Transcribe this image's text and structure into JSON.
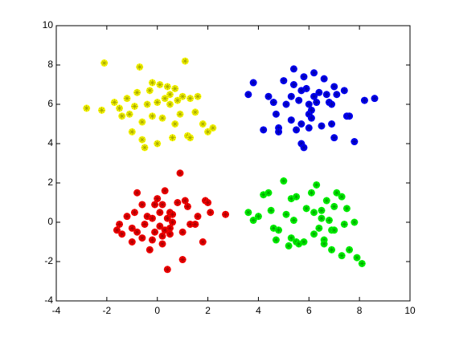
{
  "chart_data": {
    "type": "scatter",
    "xlim": [
      -4,
      10
    ],
    "ylim": [
      -4,
      10
    ],
    "xticks": [
      -4,
      -2,
      0,
      2,
      4,
      6,
      8,
      10
    ],
    "yticks": [
      -4,
      -2,
      0,
      2,
      4,
      6,
      8,
      10
    ],
    "grid": false,
    "series": [
      {
        "color": "#ffff00",
        "x": [
          -2.8,
          -2.2,
          -2.1,
          -1.7,
          -1.5,
          -1.4,
          -1.2,
          -1.1,
          -1.0,
          -0.9,
          -0.8,
          -0.7,
          -0.6,
          -0.6,
          -0.5,
          -0.4,
          -0.3,
          -0.2,
          0,
          0,
          0.1,
          0.2,
          0.3,
          0.4,
          0.5,
          0.5,
          0.6,
          0.7,
          0.7,
          0.8,
          0.9,
          1.0,
          1.1,
          1.2,
          1.3,
          1.5,
          1.6,
          1.8,
          2.0,
          2.2,
          -0.2,
          1.3
        ],
        "values": [
          5.8,
          5.7,
          8.1,
          6.1,
          5.8,
          5.4,
          6.3,
          5.5,
          4.6,
          5.9,
          6.6,
          7.9,
          5.1,
          4.2,
          3.8,
          6.0,
          6.7,
          5.4,
          6.1,
          4.0,
          7.0,
          5.3,
          6.3,
          6.9,
          6.5,
          6.0,
          4.3,
          5.0,
          6.8,
          6.2,
          5.5,
          6.4,
          8.2,
          4.4,
          4.3,
          5.6,
          6.4,
          5.0,
          4.6,
          4.8,
          7.1,
          6.3
        ]
      },
      {
        "color": "#0000ff",
        "x": [
          3.6,
          3.8,
          4.2,
          4.4,
          4.6,
          4.7,
          4.8,
          4.8,
          5.0,
          5.1,
          5.3,
          5.3,
          5.4,
          5.4,
          5.5,
          5.6,
          5.7,
          5.7,
          5.8,
          5.8,
          5.9,
          6.0,
          6.0,
          6.0,
          6.1,
          6.1,
          6.2,
          6.2,
          6.3,
          6.4,
          6.5,
          6.6,
          6.7,
          6.8,
          6.9,
          6.9,
          7.0,
          7.0,
          7.1,
          7.4,
          7.5,
          7.6,
          7.8,
          8.2,
          8.6,
          5.7
        ],
        "values": [
          6.5,
          7.1,
          4.7,
          6.4,
          6.1,
          5.5,
          4.8,
          4.6,
          7.2,
          6.0,
          6.4,
          5.2,
          7.8,
          7.0,
          4.7,
          6.2,
          5.0,
          4.0,
          3.8,
          7.4,
          6.8,
          6.0,
          5.5,
          4.8,
          5.7,
          5.3,
          7.6,
          6.4,
          6.1,
          6.6,
          4.9,
          7.3,
          6.5,
          6.1,
          6.0,
          5.0,
          4.3,
          6.9,
          6.5,
          6.7,
          5.4,
          5.4,
          4.1,
          6.2,
          6.3,
          6.7
        ]
      },
      {
        "color": "#ff0000",
        "x": [
          -1.6,
          -1.5,
          -1.4,
          -1.2,
          -1.0,
          -1.0,
          -0.9,
          -0.8,
          -0.8,
          -0.6,
          -0.6,
          -0.5,
          -0.4,
          -0.3,
          -0.2,
          -0.1,
          -0.1,
          0,
          0.1,
          0.1,
          0.2,
          0.2,
          0.3,
          0.3,
          0.4,
          0.4,
          0.5,
          0.5,
          0.5,
          0.6,
          0.6,
          0.8,
          0.9,
          1.0,
          1.0,
          1.1,
          1.2,
          1.3,
          1.5,
          1.6,
          1.8,
          1.9,
          2.0,
          2.1,
          2.7,
          -0.2,
          0.2
        ],
        "values": [
          -0.4,
          -0.1,
          -0.6,
          0.3,
          -1.0,
          -0.3,
          0.5,
          -0.5,
          1.5,
          0.9,
          -0.8,
          -0.1,
          0.3,
          -1.4,
          0.2,
          0.9,
          -0.5,
          1.2,
          0.5,
          -0.2,
          -0.7,
          -1.1,
          -0.4,
          1.6,
          -2.4,
          0.2,
          0.5,
          -0.3,
          -0.6,
          0.0,
          0.4,
          1.0,
          2.5,
          -0.5,
          -1.9,
          1.1,
          0.8,
          -0.1,
          -0.1,
          0.3,
          -1.0,
          1.1,
          1.0,
          0.5,
          0.4,
          -0.9,
          0.9
        ]
      },
      {
        "color": "#00ff00",
        "x": [
          3.6,
          3.8,
          4.0,
          4.2,
          4.4,
          4.5,
          4.6,
          4.7,
          4.8,
          5.0,
          5.1,
          5.2,
          5.3,
          5.3,
          5.4,
          5.5,
          5.5,
          5.6,
          5.8,
          5.9,
          6.1,
          6.2,
          6.2,
          6.3,
          6.4,
          6.5,
          6.6,
          6.6,
          6.7,
          6.8,
          6.9,
          7.0,
          7.0,
          7.1,
          7.3,
          7.3,
          7.4,
          7.5,
          7.6,
          7.8,
          7.9,
          8.1,
          6.9,
          6.5
        ],
        "values": [
          0.5,
          0.1,
          0.3,
          1.4,
          1.5,
          0.6,
          -0.3,
          -0.9,
          -0.4,
          2.1,
          0.4,
          -1.2,
          1.2,
          -0.8,
          0.1,
          1.3,
          -1.0,
          -1.1,
          -1.0,
          0.7,
          1.5,
          0.5,
          -0.6,
          1.9,
          -0.3,
          0.2,
          -0.9,
          -1.1,
          1.1,
          0.1,
          -0.4,
          0.8,
          -0.4,
          1.5,
          1.3,
          -1.7,
          -0.1,
          0.7,
          -1.4,
          0.0,
          -1.8,
          -2.1,
          -1.4,
          0.6
        ]
      }
    ]
  }
}
